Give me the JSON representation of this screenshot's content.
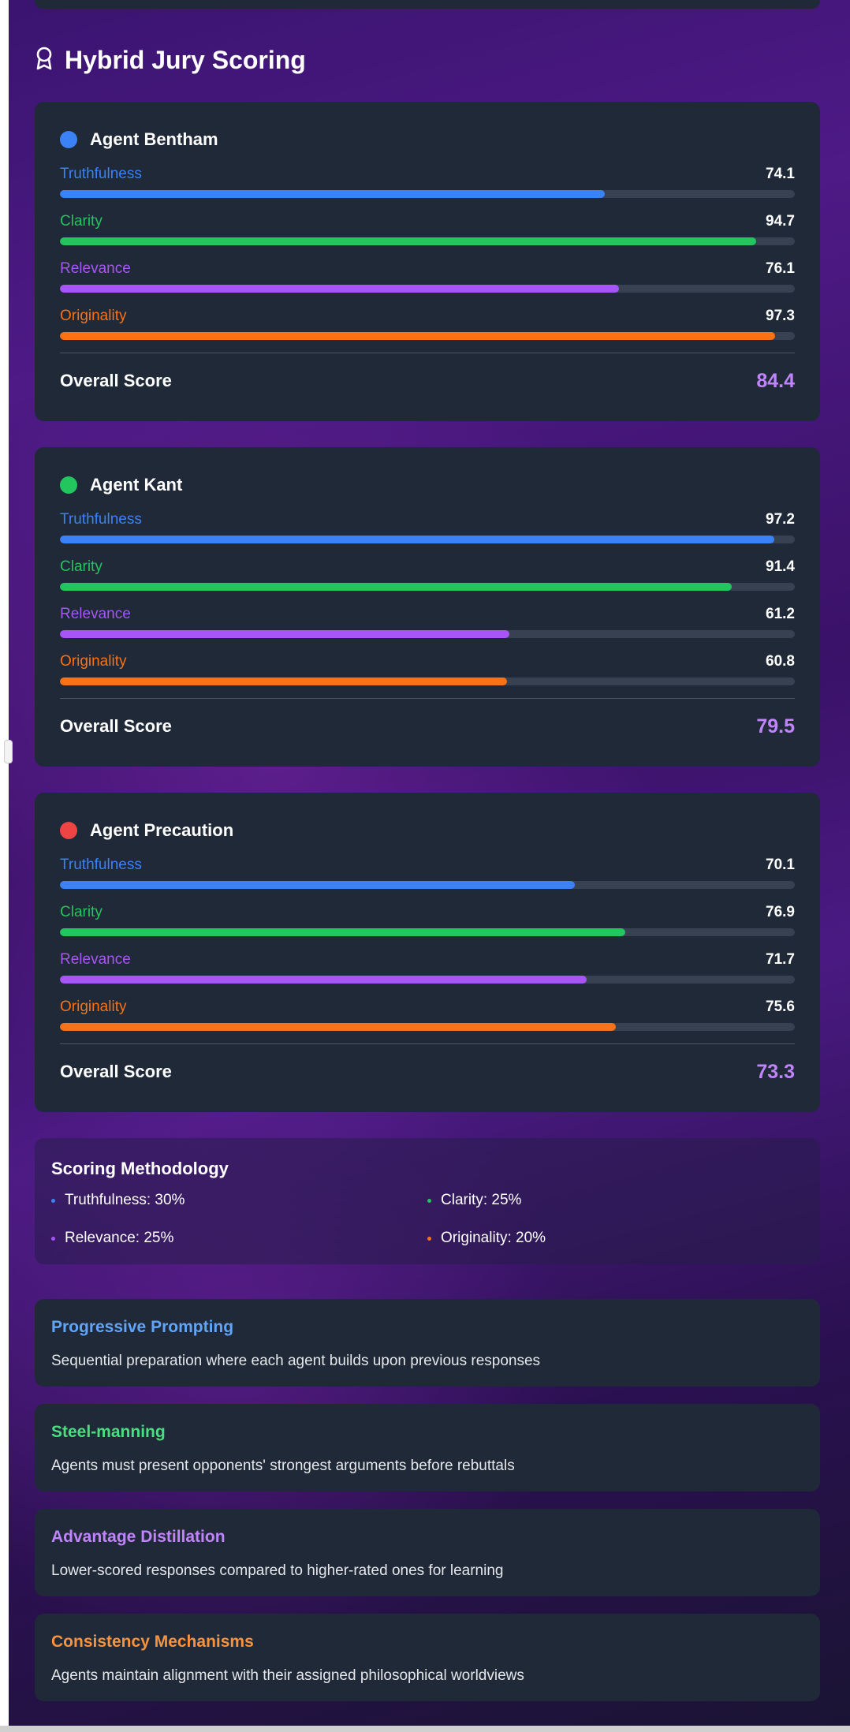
{
  "section": {
    "title": "Hybrid Jury Scoring",
    "icon": "award-ribbon-icon"
  },
  "colors": {
    "truthfulness": "#3b82f6",
    "clarity": "#22c55e",
    "relevance": "#a855f7",
    "originality": "#f97316",
    "overall": "#c084fc"
  },
  "agents": [
    {
      "name": "Agent Bentham",
      "dot_color": "#3b82f6",
      "metrics": [
        {
          "label": "Truthfulness",
          "value": "74.1",
          "fraction": 0.741
        },
        {
          "label": "Clarity",
          "value": "94.7",
          "fraction": 0.947
        },
        {
          "label": "Relevance",
          "value": "76.1",
          "fraction": 0.761
        },
        {
          "label": "Originality",
          "value": "97.3",
          "fraction": 0.973
        }
      ],
      "overall_label": "Overall Score",
      "overall_value": "84.4"
    },
    {
      "name": "Agent Kant",
      "dot_color": "#22c55e",
      "metrics": [
        {
          "label": "Truthfulness",
          "value": "97.2",
          "fraction": 0.972
        },
        {
          "label": "Clarity",
          "value": "91.4",
          "fraction": 0.914
        },
        {
          "label": "Relevance",
          "value": "61.2",
          "fraction": 0.612
        },
        {
          "label": "Originality",
          "value": "60.8",
          "fraction": 0.608
        }
      ],
      "overall_label": "Overall Score",
      "overall_value": "79.5"
    },
    {
      "name": "Agent Precaution",
      "dot_color": "#ef4444",
      "metrics": [
        {
          "label": "Truthfulness",
          "value": "70.1",
          "fraction": 0.701
        },
        {
          "label": "Clarity",
          "value": "76.9",
          "fraction": 0.769
        },
        {
          "label": "Relevance",
          "value": "71.7",
          "fraction": 0.717
        },
        {
          "label": "Originality",
          "value": "75.6",
          "fraction": 0.756
        }
      ],
      "overall_label": "Overall Score",
      "overall_value": "73.3"
    }
  ],
  "methodology": {
    "title": "Scoring Methodology",
    "items": [
      {
        "text": "Truthfulness: 30%",
        "color": "#3b82f6"
      },
      {
        "text": "Clarity: 25%",
        "color": "#22c55e"
      },
      {
        "text": "Relevance: 25%",
        "color": "#a855f7"
      },
      {
        "text": "Originality: 20%",
        "color": "#f97316"
      }
    ]
  },
  "techniques": [
    {
      "title": "Progressive Prompting",
      "color": "#60a5fa",
      "description": "Sequential preparation where each agent builds upon previous responses"
    },
    {
      "title": "Steel-manning",
      "color": "#4ade80",
      "description": "Agents must present opponents' strongest arguments before rebuttals"
    },
    {
      "title": "Advantage Distillation",
      "color": "#c084fc",
      "description": "Lower-scored responses compared to higher-rated ones for learning"
    },
    {
      "title": "Consistency Mechanisms",
      "color": "#fb923c",
      "description": "Agents maintain alignment with their assigned philosophical worldviews"
    }
  ]
}
